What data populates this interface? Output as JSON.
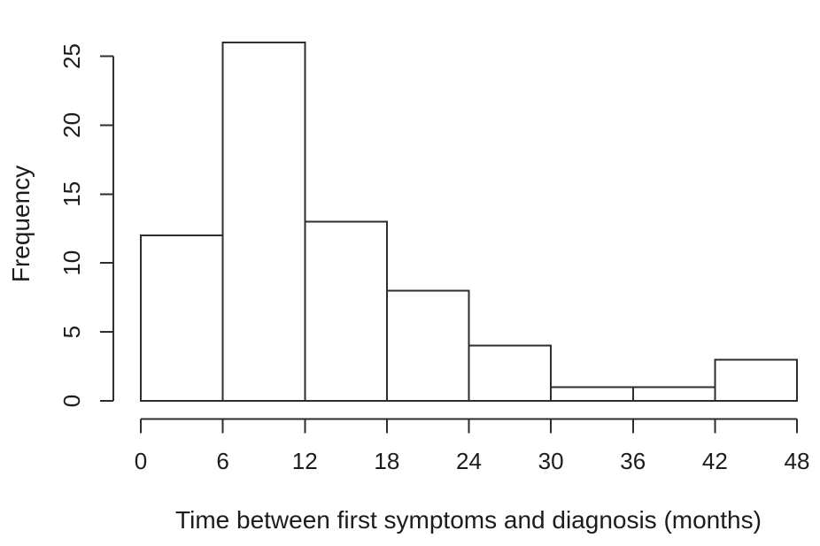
{
  "figure": {
    "background_color": "#ffffff",
    "line_color": "#2d2d2d",
    "text_color": "#1c1c1c"
  },
  "chart_data": {
    "type": "bar",
    "subtype": "histogram",
    "title": "",
    "xlabel": "Time between first symptoms and diagnosis (months)",
    "ylabel": "Frequency",
    "bin_edges": [
      0,
      6,
      12,
      18,
      24,
      30,
      36,
      42,
      48
    ],
    "counts": [
      12,
      26,
      13,
      8,
      4,
      1,
      1,
      3
    ],
    "x_ticks": [
      0,
      6,
      12,
      18,
      24,
      30,
      36,
      42,
      48
    ],
    "y_ticks": [
      0,
      5,
      10,
      15,
      20,
      25
    ],
    "xlim": [
      0,
      48
    ],
    "ylim": [
      0,
      25
    ],
    "bar_fill": "#ffffff",
    "bar_stroke": "#2d2d2d",
    "grid": false,
    "legend": null
  }
}
